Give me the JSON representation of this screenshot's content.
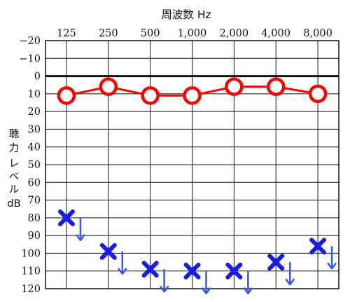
{
  "chart_data": {
    "type": "scatter",
    "title": "周波数 Hz",
    "xlabel": "周波数 Hz",
    "ylabel": [
      "聴",
      "力",
      "レ",
      "ベ",
      "ル",
      "dB"
    ],
    "categories": [
      "125",
      "250",
      "500",
      "1,000",
      "2,000",
      "4,000",
      "8,000"
    ],
    "yticks": [
      "−20",
      "−10",
      "0",
      "10",
      "20",
      "30",
      "40",
      "50",
      "60",
      "70",
      "80",
      "90",
      "100",
      "110",
      "120"
    ],
    "ylim": [
      -20,
      120
    ],
    "y_inverted": true,
    "grid": true,
    "series": [
      {
        "marker": "circle",
        "connected": true,
        "color": "#ff0000",
        "values": [
          11,
          6,
          11,
          11,
          6,
          6,
          10
        ]
      },
      {
        "marker": "cross-with-down-arrow",
        "connected": false,
        "color": "#1a1ae6",
        "arrow_color": "#3355ff",
        "values": [
          80,
          99,
          109,
          110,
          110,
          105,
          96
        ]
      }
    ]
  }
}
